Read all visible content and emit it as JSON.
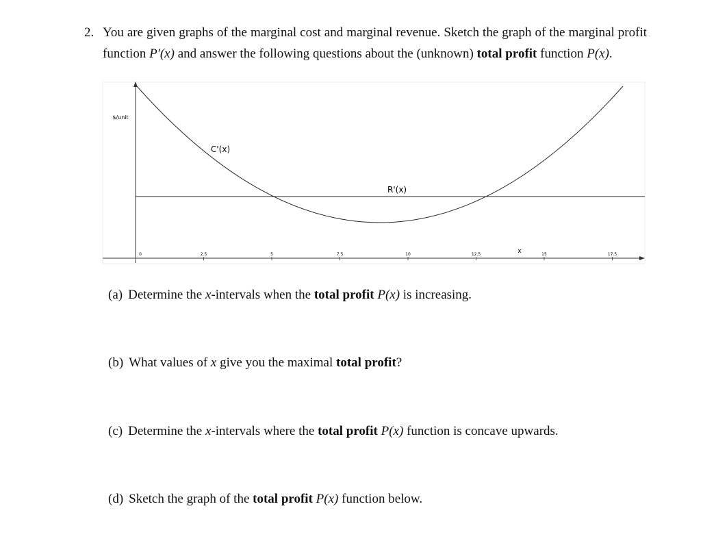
{
  "question": {
    "number": "2.",
    "text": [
      "You are given graphs of the marginal cost and marginal revenue. Sketch the graph of the marginal profit function ",
      "P′(x)",
      " and answer the following questions about the (unknown) ",
      "total profit",
      " function ",
      "P(x)",
      "."
    ]
  },
  "graph": {
    "y_label": "$/unit",
    "x_label": "x",
    "curve_labels": [
      "C'(x)",
      "R'(x)"
    ],
    "xticks": [
      0,
      2.5,
      5,
      7.5,
      10,
      12.5,
      15,
      17.5
    ]
  },
  "parts": [
    {
      "label": "(a)",
      "text": [
        "Determine the ",
        "x",
        "-intervals when the ",
        "total profit",
        " P(x)",
        " is increasing."
      ]
    },
    {
      "label": "(b)",
      "text": [
        "What values of ",
        "x",
        " give you the maximal ",
        "total profit",
        "?"
      ]
    },
    {
      "label": "(c)",
      "text": [
        "Determine the ",
        "x",
        "-intervals where the ",
        "total profit",
        " P(x)",
        " function is concave upwards."
      ]
    },
    {
      "label": "(d)",
      "text": [
        "Sketch the graph of the ",
        "total profit",
        " P(x)",
        " function below."
      ]
    }
  ]
}
